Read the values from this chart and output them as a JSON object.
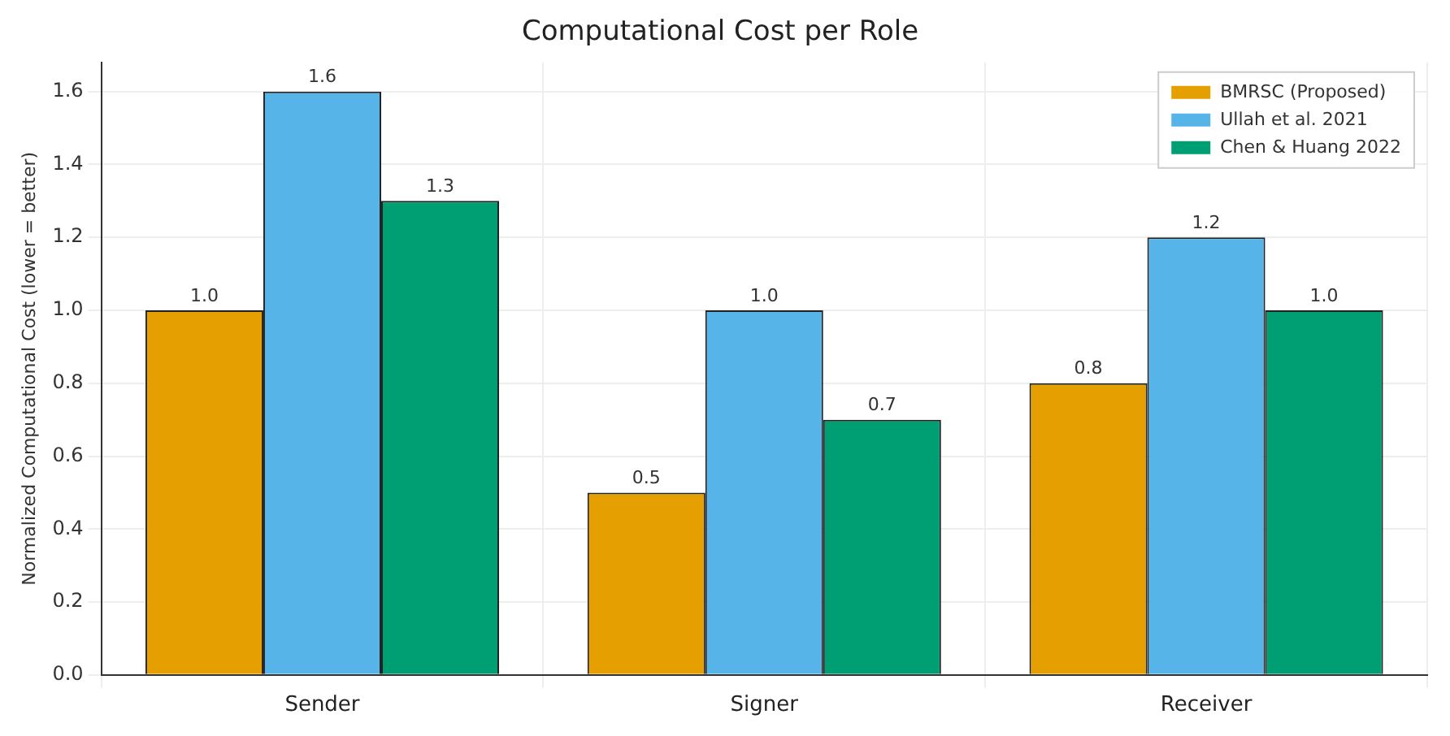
{
  "chart_data": {
    "type": "bar",
    "title": "Computational Cost per Role",
    "ylabel": "Normalized Computational Cost (lower = better)",
    "categories": [
      "Sender",
      "Signer",
      "Receiver"
    ],
    "series": [
      {
        "name": "BMRSC (Proposed)",
        "color": "#e69f00",
        "values": [
          1.0,
          0.5,
          0.8
        ],
        "value_labels": [
          "1.0",
          "0.5",
          "0.8"
        ]
      },
      {
        "name": "Ullah et al. 2021",
        "color": "#56b4e9",
        "values": [
          1.6,
          1.0,
          1.2
        ],
        "value_labels": [
          "1.6",
          "1.0",
          "1.2"
        ]
      },
      {
        "name": "Chen & Huang 2022",
        "color": "#009e73",
        "values": [
          1.3,
          0.7,
          1.0
        ],
        "value_labels": [
          "1.3",
          "0.7",
          "1.0"
        ]
      }
    ],
    "ylim": [
      0,
      1.68
    ],
    "yticks": [
      {
        "value": 0,
        "label": "0.0"
      },
      0.2,
      0.4,
      0.6,
      0.8,
      {
        "value": 1,
        "label": "1.0"
      },
      1.2,
      1.4,
      1.6
    ],
    "grid": true,
    "legend": "top right"
  }
}
